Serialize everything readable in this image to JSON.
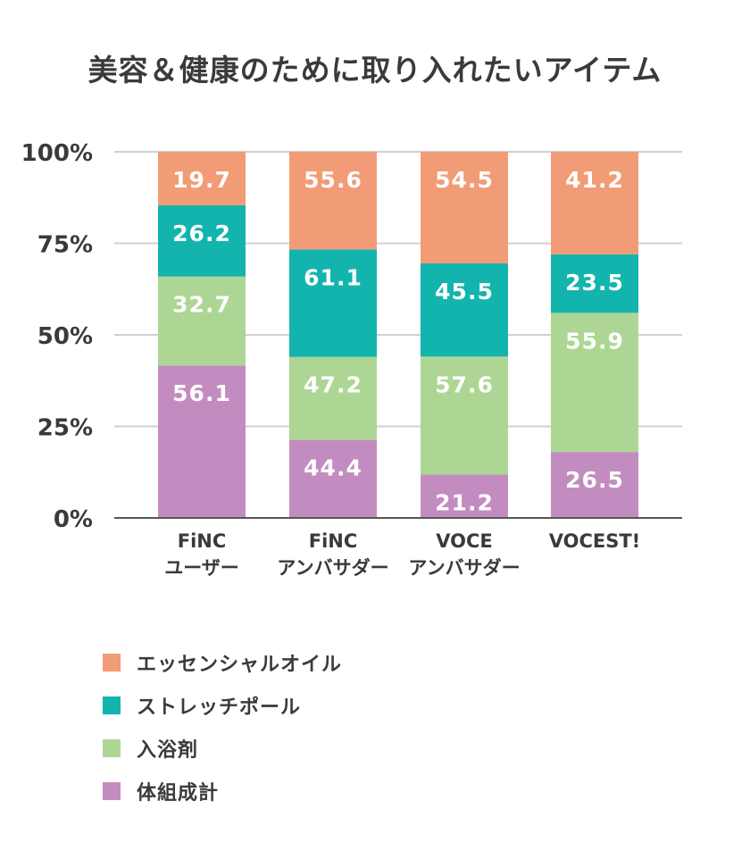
{
  "chart_data": {
    "type": "bar",
    "stacked": true,
    "title": "美容＆健康のために取り入れたいアイテム",
    "categories": [
      [
        "FiNC",
        "ユーザー"
      ],
      [
        "FiNC",
        "アンバサダー"
      ],
      [
        "VOCE",
        "アンバサダー"
      ],
      [
        "VOCEST!"
      ]
    ],
    "series": [
      {
        "name": "エッセンシャルオイル",
        "color": "#f19c76",
        "values": [
          19.7,
          55.6,
          54.5,
          41.2
        ]
      },
      {
        "name": "ストレッチポール",
        "color": "#14b4ae",
        "values": [
          26.2,
          61.1,
          45.5,
          23.5
        ]
      },
      {
        "name": "入浴剤",
        "color": "#add694",
        "values": [
          32.7,
          47.2,
          57.6,
          55.9
        ]
      },
      {
        "name": "体組成計",
        "color": "#c38cc0",
        "values": [
          56.1,
          44.4,
          21.2,
          26.5
        ]
      }
    ],
    "stack_order": [
      "体組成計",
      "入浴剤",
      "ストレッチポール",
      "エッセンシャルオイル"
    ],
    "normalized": true,
    "ylim": [
      0,
      100
    ],
    "yticks": [
      "0%",
      "25%",
      "50%",
      "75%",
      "100%"
    ],
    "grid": true,
    "legend_position": "bottom"
  }
}
